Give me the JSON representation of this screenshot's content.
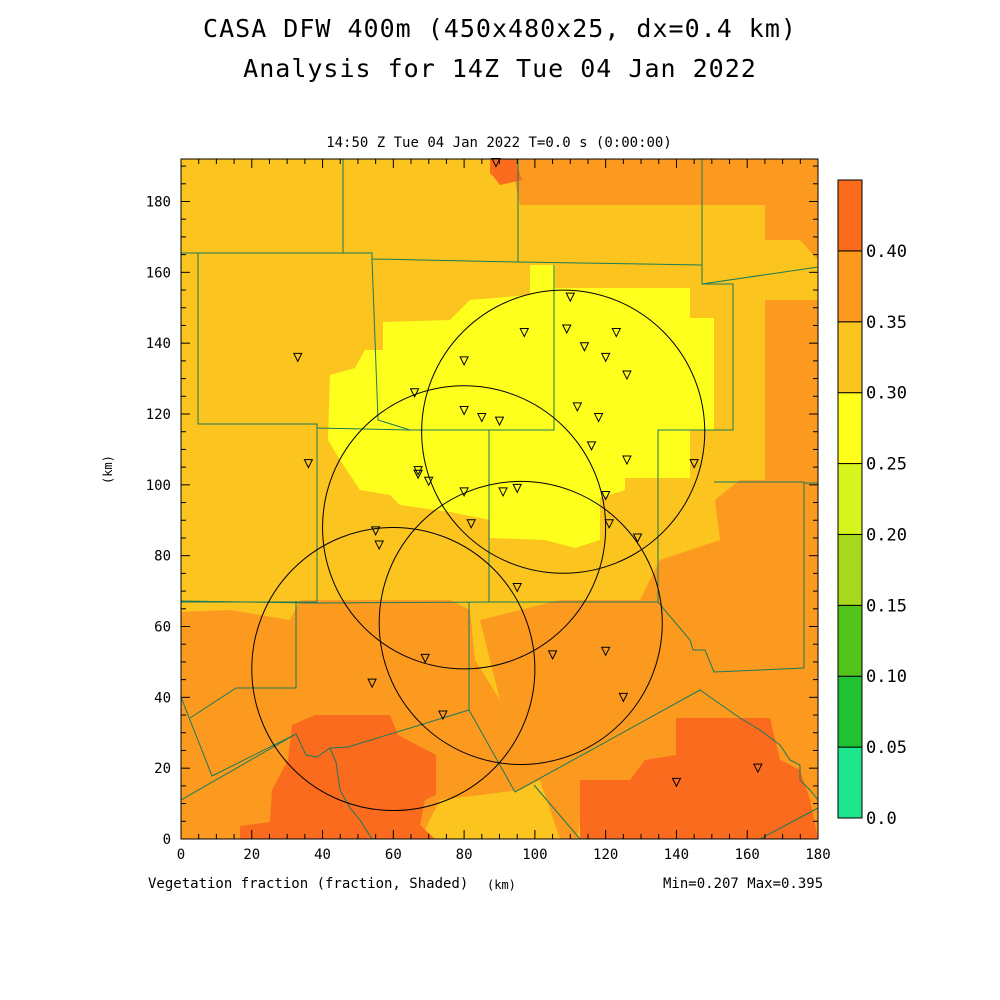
{
  "title_line1": "CASA DFW 400m (450x480x25, dx=0.4 km)",
  "title_line2": "Analysis for 14Z Tue 04 Jan 2022",
  "subtitle": "14:50 Z Tue 04 Jan 2022   T=0.0 s (0:00:00)",
  "x_caption": "Vegetation fraction (fraction, Shaded)",
  "x_unit": "(km)",
  "y_unit": "(km)",
  "min_max": "Min=0.207 Max=0.395",
  "chart_data": {
    "type": "heatmap",
    "variable": "Vegetation fraction",
    "units": "fraction",
    "xlim": [
      0,
      180
    ],
    "ylim": [
      0,
      192
    ],
    "x_ticks": [
      0,
      20,
      40,
      60,
      80,
      100,
      120,
      140,
      160,
      180
    ],
    "y_ticks": [
      0,
      20,
      40,
      60,
      80,
      100,
      120,
      140,
      160,
      180
    ],
    "min": 0.207,
    "max": 0.395,
    "colorbar": {
      "levels": [
        "0.0",
        "0.05",
        "0.10",
        "0.15",
        "0.20",
        "0.25",
        "0.30",
        "0.35",
        "0.40"
      ],
      "colors": [
        "#1de68c",
        "#20c234",
        "#52c41a",
        "#a6d81c",
        "#d6f51e",
        "#ffff1e",
        "#fbc41e",
        "#fb9a1e",
        "#fa6b1e"
      ]
    },
    "radar_rings": [
      {
        "x": 108,
        "y": 115,
        "r": 40
      },
      {
        "x": 80,
        "y": 88,
        "r": 40
      },
      {
        "x": 96,
        "y": 61,
        "r": 40
      },
      {
        "x": 60,
        "y": 48,
        "r": 40
      }
    ],
    "stations": [
      [
        89,
        191
      ],
      [
        110,
        153
      ],
      [
        97,
        143
      ],
      [
        109,
        144
      ],
      [
        114,
        139
      ],
      [
        123,
        143
      ],
      [
        120,
        136
      ],
      [
        126,
        131
      ],
      [
        80,
        135
      ],
      [
        33,
        136
      ],
      [
        66,
        126
      ],
      [
        80,
        121
      ],
      [
        85,
        119
      ],
      [
        90,
        118
      ],
      [
        112,
        122
      ],
      [
        118,
        119
      ],
      [
        116,
        111
      ],
      [
        126,
        107
      ],
      [
        145,
        106
      ],
      [
        36,
        106
      ],
      [
        67,
        104
      ],
      [
        67,
        103
      ],
      [
        70,
        101
      ],
      [
        80,
        98
      ],
      [
        91,
        98
      ],
      [
        95,
        99
      ],
      [
        120,
        97
      ],
      [
        82,
        89
      ],
      [
        121,
        89
      ],
      [
        129,
        85
      ],
      [
        55,
        87
      ],
      [
        56,
        83
      ],
      [
        95,
        71
      ],
      [
        69,
        51
      ],
      [
        105,
        52
      ],
      [
        120,
        53
      ],
      [
        54,
        44
      ],
      [
        125,
        40
      ],
      [
        74,
        35
      ],
      [
        140,
        16
      ],
      [
        163,
        20
      ]
    ]
  }
}
